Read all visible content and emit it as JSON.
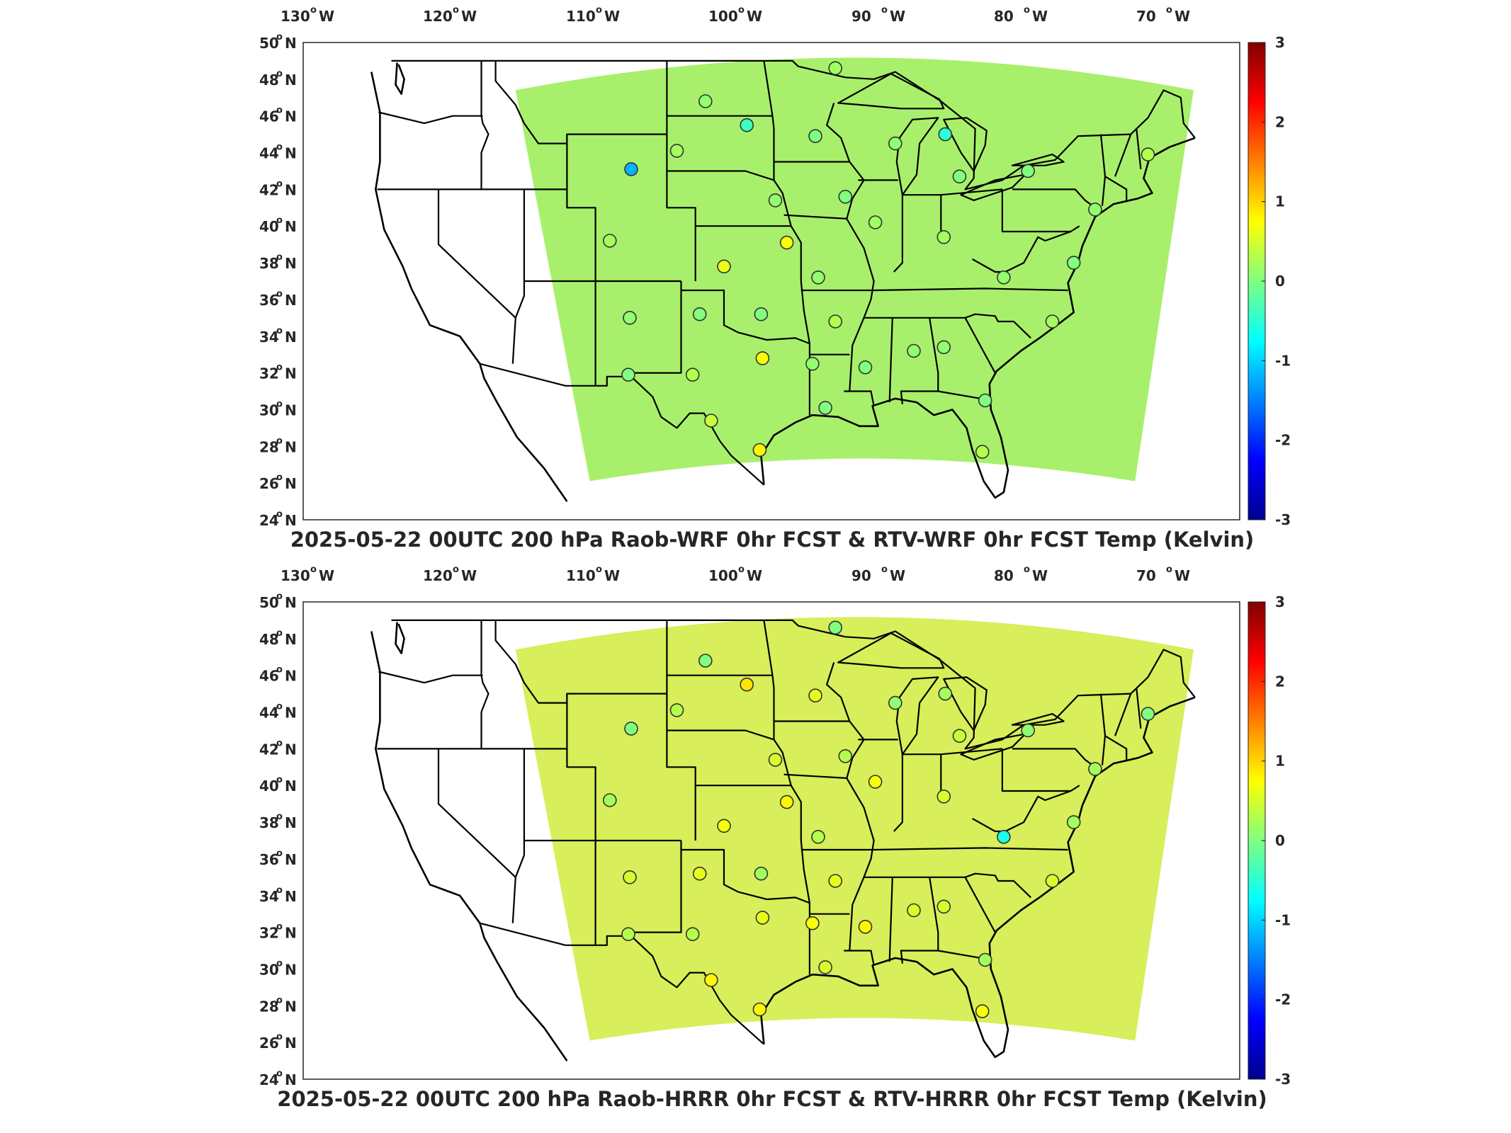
{
  "figure": {
    "longitude_labels": [
      {
        "deg": "130",
        "hem": "W"
      },
      {
        "deg": "120",
        "hem": "W"
      },
      {
        "deg": "110",
        "hem": "W"
      },
      {
        "deg": "100",
        "hem": "W"
      },
      {
        "deg": "90",
        "hem": "W"
      },
      {
        "deg": "80",
        "hem": "W"
      },
      {
        "deg": "70",
        "hem": "W"
      }
    ],
    "latitude_labels": [
      {
        "deg": "50",
        "hem": "N"
      },
      {
        "deg": "48",
        "hem": "N"
      },
      {
        "deg": "46",
        "hem": "N"
      },
      {
        "deg": "44",
        "hem": "N"
      },
      {
        "deg": "42",
        "hem": "N"
      },
      {
        "deg": "40",
        "hem": "N"
      },
      {
        "deg": "38",
        "hem": "N"
      },
      {
        "deg": "36",
        "hem": "N"
      },
      {
        "deg": "34",
        "hem": "N"
      },
      {
        "deg": "32",
        "hem": "N"
      },
      {
        "deg": "30",
        "hem": "N"
      },
      {
        "deg": "28",
        "hem": "N"
      },
      {
        "deg": "26",
        "hem": "N"
      },
      {
        "deg": "24",
        "hem": "N"
      }
    ],
    "colorbar_ticks": [
      "3",
      "2",
      "1",
      "0",
      "-1",
      "-2",
      "-3"
    ],
    "colors": {
      "colormap": [
        "#00008f",
        "#0000ff",
        "#0080ff",
        "#00ffff",
        "#80ff80",
        "#ffff00",
        "#ff8000",
        "#ff0000",
        "#800000"
      ],
      "wrf_field": "#a8f06c",
      "hrrr_field": "#d8ee5a",
      "outline": "#000000"
    },
    "panels": [
      {
        "title": "2025-05-22 00UTC 200 hPa Raob-WRF 0hr FCST & RTV-WRF 0hr FCST Temp (Kelvin)",
        "colorbar_label": "",
        "stations": [
          {
            "name": "",
            "lon": -92.2,
            "lat": 48.6,
            "value": 0.2
          },
          {
            "name": "",
            "lon": -101.3,
            "lat": 46.8,
            "value": 0.1
          },
          {
            "name": "",
            "lon": -98.4,
            "lat": 45.5,
            "value": -0.4
          },
          {
            "name": "",
            "lon": -93.6,
            "lat": 44.9,
            "value": 0.0
          },
          {
            "name": "",
            "lon": -88.0,
            "lat": 44.5,
            "value": 0.1
          },
          {
            "name": "",
            "lon": -84.5,
            "lat": 45.0,
            "value": -0.5
          },
          {
            "name": "",
            "lon": -83.5,
            "lat": 42.7,
            "value": 0.0
          },
          {
            "name": "",
            "lon": -78.7,
            "lat": 43.0,
            "value": 0.0
          },
          {
            "name": "",
            "lon": -70.3,
            "lat": 43.9,
            "value": 0.3
          },
          {
            "name": "",
            "lon": -106.5,
            "lat": 43.1,
            "value": -1.2
          },
          {
            "name": "",
            "lon": -103.3,
            "lat": 44.1,
            "value": 0.2
          },
          {
            "name": "",
            "lon": -96.4,
            "lat": 41.4,
            "value": 0.1
          },
          {
            "name": "",
            "lon": -91.5,
            "lat": 41.6,
            "value": 0.0
          },
          {
            "name": "",
            "lon": -89.4,
            "lat": 40.2,
            "value": 0.2
          },
          {
            "name": "",
            "lon": -84.6,
            "lat": 39.4,
            "value": 0.2
          },
          {
            "name": "",
            "lon": -74.0,
            "lat": 40.9,
            "value": 0.1
          },
          {
            "name": "",
            "lon": -108.0,
            "lat": 39.2,
            "value": 0.2
          },
          {
            "name": "",
            "lon": -100.0,
            "lat": 37.8,
            "value": 0.6
          },
          {
            "name": "",
            "lon": -95.6,
            "lat": 39.1,
            "value": 0.7
          },
          {
            "name": "",
            "lon": -93.4,
            "lat": 37.2,
            "value": 0.1
          },
          {
            "name": "",
            "lon": -80.4,
            "lat": 37.2,
            "value": 0.1
          },
          {
            "name": "",
            "lon": -75.5,
            "lat": 38.0,
            "value": 0.0
          },
          {
            "name": "",
            "lon": -106.6,
            "lat": 35.0,
            "value": 0.1
          },
          {
            "name": "",
            "lon": -101.7,
            "lat": 35.2,
            "value": 0.0
          },
          {
            "name": "",
            "lon": -97.4,
            "lat": 35.2,
            "value": 0.0
          },
          {
            "name": "",
            "lon": -92.2,
            "lat": 34.8,
            "value": 0.3
          },
          {
            "name": "",
            "lon": -77.0,
            "lat": 34.8,
            "value": 0.2
          },
          {
            "name": "",
            "lon": -97.3,
            "lat": 32.8,
            "value": 0.7
          },
          {
            "name": "",
            "lon": -93.8,
            "lat": 32.5,
            "value": 0.1
          },
          {
            "name": "",
            "lon": -90.1,
            "lat": 32.3,
            "value": 0.0
          },
          {
            "name": "",
            "lon": -86.7,
            "lat": 33.2,
            "value": 0.1
          },
          {
            "name": "",
            "lon": -84.6,
            "lat": 33.4,
            "value": 0.1
          },
          {
            "name": "",
            "lon": -106.7,
            "lat": 31.9,
            "value": 0.0
          },
          {
            "name": "",
            "lon": -102.2,
            "lat": 31.9,
            "value": 0.3
          },
          {
            "name": "",
            "lon": -100.9,
            "lat": 29.4,
            "value": 0.4
          },
          {
            "name": "",
            "lon": -97.5,
            "lat": 27.8,
            "value": 0.8
          },
          {
            "name": "",
            "lon": -92.9,
            "lat": 30.1,
            "value": 0.0
          },
          {
            "name": "",
            "lon": -81.7,
            "lat": 30.5,
            "value": 0.0
          },
          {
            "name": "",
            "lon": -81.9,
            "lat": 27.7,
            "value": 0.3
          }
        ]
      },
      {
        "title": "2025-05-22 00UTC 200 hPa Raob-HRRR 0hr FCST & RTV-HRRR 0hr FCST Temp (Kelvin)",
        "colorbar_label": "",
        "stations": [
          {
            "name": "",
            "lon": -92.2,
            "lat": 48.6,
            "value": 0.0
          },
          {
            "name": "",
            "lon": -101.3,
            "lat": 46.8,
            "value": 0.0
          },
          {
            "name": "",
            "lon": -98.4,
            "lat": 45.5,
            "value": 0.9
          },
          {
            "name": "",
            "lon": -93.6,
            "lat": 44.9,
            "value": 0.6
          },
          {
            "name": "",
            "lon": -88.0,
            "lat": 44.5,
            "value": 0.1
          },
          {
            "name": "",
            "lon": -84.5,
            "lat": 45.0,
            "value": 0.2
          },
          {
            "name": "",
            "lon": -83.5,
            "lat": 42.7,
            "value": 0.4
          },
          {
            "name": "",
            "lon": -78.7,
            "lat": 43.0,
            "value": 0.1
          },
          {
            "name": "",
            "lon": -70.3,
            "lat": 43.9,
            "value": 0.0
          },
          {
            "name": "",
            "lon": -106.5,
            "lat": 43.1,
            "value": 0.0
          },
          {
            "name": "",
            "lon": -103.3,
            "lat": 44.1,
            "value": 0.3
          },
          {
            "name": "",
            "lon": -96.4,
            "lat": 41.4,
            "value": 0.5
          },
          {
            "name": "",
            "lon": -91.5,
            "lat": 41.6,
            "value": 0.3
          },
          {
            "name": "",
            "lon": -89.4,
            "lat": 40.2,
            "value": 0.7
          },
          {
            "name": "",
            "lon": -84.6,
            "lat": 39.4,
            "value": 0.5
          },
          {
            "name": "",
            "lon": -74.0,
            "lat": 40.9,
            "value": 0.2
          },
          {
            "name": "",
            "lon": -108.0,
            "lat": 39.2,
            "value": 0.2
          },
          {
            "name": "",
            "lon": -100.0,
            "lat": 37.8,
            "value": 0.7
          },
          {
            "name": "",
            "lon": -95.6,
            "lat": 39.1,
            "value": 0.8
          },
          {
            "name": "",
            "lon": -93.4,
            "lat": 37.2,
            "value": 0.3
          },
          {
            "name": "",
            "lon": -80.4,
            "lat": 37.2,
            "value": -0.6
          },
          {
            "name": "",
            "lon": -75.5,
            "lat": 38.0,
            "value": 0.2
          },
          {
            "name": "",
            "lon": -106.6,
            "lat": 35.0,
            "value": 0.5
          },
          {
            "name": "",
            "lon": -101.7,
            "lat": 35.2,
            "value": 0.6
          },
          {
            "name": "",
            "lon": -97.4,
            "lat": 35.2,
            "value": 0.2
          },
          {
            "name": "",
            "lon": -92.2,
            "lat": 34.8,
            "value": 0.6
          },
          {
            "name": "",
            "lon": -77.0,
            "lat": 34.8,
            "value": 0.5
          },
          {
            "name": "",
            "lon": -97.3,
            "lat": 32.8,
            "value": 0.6
          },
          {
            "name": "",
            "lon": -93.8,
            "lat": 32.5,
            "value": 0.7
          },
          {
            "name": "",
            "lon": -90.1,
            "lat": 32.3,
            "value": 0.8
          },
          {
            "name": "",
            "lon": -86.7,
            "lat": 33.2,
            "value": 0.5
          },
          {
            "name": "",
            "lon": -84.6,
            "lat": 33.4,
            "value": 0.5
          },
          {
            "name": "",
            "lon": -106.7,
            "lat": 31.9,
            "value": 0.3
          },
          {
            "name": "",
            "lon": -102.2,
            "lat": 31.9,
            "value": 0.3
          },
          {
            "name": "",
            "lon": -100.9,
            "lat": 29.4,
            "value": 0.8
          },
          {
            "name": "",
            "lon": -97.5,
            "lat": 27.8,
            "value": 0.8
          },
          {
            "name": "",
            "lon": -92.9,
            "lat": 30.1,
            "value": 0.5
          },
          {
            "name": "",
            "lon": -81.7,
            "lat": 30.5,
            "value": 0.2
          },
          {
            "name": "",
            "lon": -81.9,
            "lat": 27.7,
            "value": 0.7
          }
        ]
      }
    ]
  }
}
